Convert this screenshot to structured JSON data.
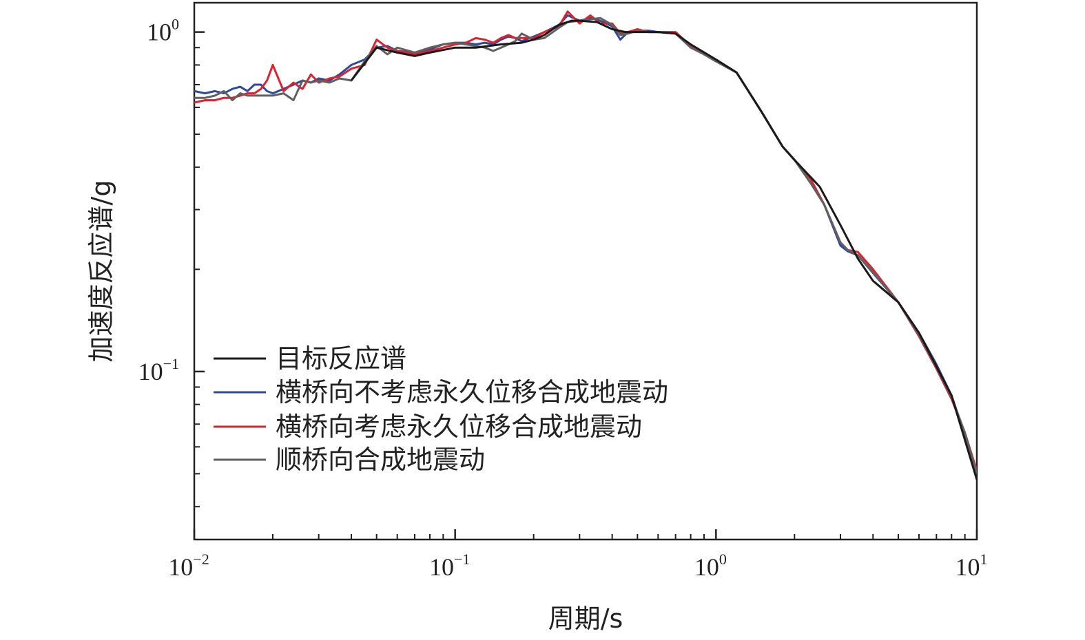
{
  "chart_data": {
    "type": "line",
    "xlabel": "周期/s",
    "ylabel": "加速度反应谱/g",
    "xscale": "log",
    "yscale": "log",
    "xlim": [
      0.01,
      10
    ],
    "ylim": [
      0.032,
      1.22
    ],
    "x_ticks": [
      {
        "value": 0.01,
        "base": "10",
        "exp": "−2"
      },
      {
        "value": 0.1,
        "base": "10",
        "exp": "−1"
      },
      {
        "value": 1,
        "base": "10",
        "exp": "0"
      },
      {
        "value": 10,
        "base": "10",
        "exp": "1"
      }
    ],
    "y_ticks": [
      {
        "value": 0.1,
        "base": "10",
        "exp": "−1"
      },
      {
        "value": 1,
        "base": "10",
        "exp": "0"
      }
    ],
    "grid": false,
    "legend_position": "lower-left",
    "series": [
      {
        "name": "目标反应谱",
        "color": "#1a1a1a",
        "x": [
          0.04,
          0.05,
          0.06,
          0.07,
          0.08,
          0.1,
          0.12,
          0.15,
          0.18,
          0.2,
          0.22,
          0.25,
          0.28,
          0.3,
          0.35,
          0.4,
          0.45,
          0.5,
          0.6,
          0.7,
          0.8,
          1.0,
          1.2,
          1.5,
          1.8,
          2.0,
          2.5,
          3.0,
          3.5,
          4.0,
          5.0,
          6.0,
          8.0,
          10.0
        ],
        "y": [
          0.72,
          0.9,
          0.87,
          0.85,
          0.87,
          0.9,
          0.9,
          0.92,
          0.93,
          0.95,
          0.98,
          1.05,
          1.08,
          1.08,
          1.07,
          1.02,
          1.0,
          1.0,
          1.0,
          0.99,
          0.92,
          0.83,
          0.76,
          0.58,
          0.46,
          0.42,
          0.35,
          0.27,
          0.215,
          0.185,
          0.16,
          0.13,
          0.085,
          0.048
        ]
      },
      {
        "name": "横桥向不考虑永久位移合成地震动",
        "color": "#2e4a9e",
        "x": [
          0.01,
          0.011,
          0.012,
          0.013,
          0.014,
          0.015,
          0.016,
          0.017,
          0.018,
          0.019,
          0.02,
          0.022,
          0.024,
          0.026,
          0.028,
          0.03,
          0.033,
          0.036,
          0.04,
          0.045,
          0.05,
          0.055,
          0.06,
          0.07,
          0.08,
          0.09,
          0.1,
          0.11,
          0.12,
          0.13,
          0.14,
          0.15,
          0.16,
          0.17,
          0.18,
          0.2,
          0.22,
          0.25,
          0.27,
          0.3,
          0.33,
          0.36,
          0.4,
          0.43,
          0.46,
          0.5,
          0.55,
          0.6,
          0.7,
          0.8,
          0.9,
          1.0,
          1.2,
          1.5,
          1.8,
          2.0,
          2.3,
          2.6,
          3.0,
          3.2,
          3.5,
          4.0,
          5.0,
          6.0,
          7.0,
          8.0,
          9.0,
          10.0
        ],
        "y": [
          0.67,
          0.66,
          0.67,
          0.66,
          0.68,
          0.69,
          0.67,
          0.7,
          0.7,
          0.67,
          0.66,
          0.68,
          0.7,
          0.72,
          0.71,
          0.73,
          0.72,
          0.75,
          0.8,
          0.83,
          0.9,
          0.91,
          0.88,
          0.87,
          0.89,
          0.92,
          0.93,
          0.93,
          0.92,
          0.93,
          0.92,
          0.95,
          0.97,
          0.96,
          0.94,
          0.97,
          1.0,
          1.05,
          1.12,
          1.08,
          1.1,
          1.08,
          1.04,
          0.95,
          1.0,
          1.01,
          1.01,
          1.0,
          0.99,
          0.91,
          0.86,
          0.82,
          0.76,
          0.58,
          0.46,
          0.42,
          0.37,
          0.31,
          0.235,
          0.226,
          0.22,
          0.195,
          0.16,
          0.13,
          0.105,
          0.085,
          0.065,
          0.05
        ]
      },
      {
        "name": "横桥向考虑永久位移合成地震动",
        "color": "#e0202c",
        "x": [
          0.01,
          0.011,
          0.012,
          0.013,
          0.014,
          0.015,
          0.016,
          0.017,
          0.018,
          0.019,
          0.02,
          0.022,
          0.024,
          0.026,
          0.028,
          0.03,
          0.033,
          0.036,
          0.04,
          0.045,
          0.05,
          0.055,
          0.06,
          0.07,
          0.08,
          0.09,
          0.1,
          0.11,
          0.12,
          0.13,
          0.14,
          0.15,
          0.16,
          0.17,
          0.18,
          0.2,
          0.22,
          0.25,
          0.27,
          0.3,
          0.33,
          0.36,
          0.4,
          0.43,
          0.46,
          0.5,
          0.55,
          0.6,
          0.7,
          0.8,
          0.9,
          1.0,
          1.2,
          1.5,
          1.8,
          2.0,
          2.3,
          2.6,
          3.0,
          3.2,
          3.5,
          4.0,
          5.0,
          6.0,
          7.0,
          8.0,
          9.0,
          10.0
        ],
        "y": [
          0.62,
          0.63,
          0.63,
          0.64,
          0.64,
          0.65,
          0.66,
          0.66,
          0.68,
          0.72,
          0.8,
          0.67,
          0.71,
          0.68,
          0.75,
          0.71,
          0.73,
          0.74,
          0.78,
          0.8,
          0.95,
          0.9,
          0.88,
          0.86,
          0.88,
          0.9,
          0.92,
          0.93,
          0.96,
          0.95,
          0.93,
          0.96,
          0.98,
          0.96,
          0.96,
          0.96,
          1.0,
          1.04,
          1.15,
          1.06,
          1.12,
          1.06,
          1.06,
          0.99,
          1.0,
          1.02,
          1.0,
          1.0,
          1.0,
          0.91,
          0.86,
          0.83,
          0.76,
          0.58,
          0.46,
          0.42,
          0.37,
          0.31,
          0.24,
          0.228,
          0.225,
          0.2,
          0.16,
          0.127,
          0.102,
          0.083,
          0.066,
          0.051
        ]
      },
      {
        "name": "顺桥向合成地震动",
        "color": "#606060",
        "x": [
          0.01,
          0.011,
          0.012,
          0.013,
          0.014,
          0.015,
          0.016,
          0.017,
          0.018,
          0.019,
          0.02,
          0.022,
          0.024,
          0.026,
          0.028,
          0.03,
          0.033,
          0.036,
          0.04,
          0.045,
          0.05,
          0.055,
          0.06,
          0.07,
          0.08,
          0.09,
          0.1,
          0.11,
          0.12,
          0.13,
          0.14,
          0.15,
          0.16,
          0.17,
          0.18,
          0.2,
          0.22,
          0.25,
          0.27,
          0.3,
          0.33,
          0.36,
          0.4,
          0.43,
          0.46,
          0.5,
          0.55,
          0.6,
          0.7,
          0.8,
          0.9,
          1.0,
          1.2,
          1.5,
          1.8,
          2.0,
          2.3,
          2.6,
          3.0,
          3.2,
          3.5,
          4.0,
          5.0,
          6.0,
          7.0,
          8.0,
          9.0,
          10.0
        ],
        "y": [
          0.64,
          0.64,
          0.65,
          0.67,
          0.63,
          0.66,
          0.65,
          0.65,
          0.65,
          0.65,
          0.65,
          0.66,
          0.63,
          0.72,
          0.71,
          0.72,
          0.71,
          0.73,
          0.72,
          0.82,
          0.91,
          0.86,
          0.9,
          0.87,
          0.9,
          0.92,
          0.93,
          0.92,
          0.91,
          0.9,
          0.88,
          0.9,
          0.92,
          0.94,
          0.99,
          0.95,
          0.96,
          1.03,
          1.07,
          1.08,
          1.09,
          1.1,
          1.05,
          0.98,
          0.99,
          1.01,
          1.0,
          1.0,
          0.99,
          0.9,
          0.86,
          0.82,
          0.76,
          0.58,
          0.46,
          0.42,
          0.36,
          0.31,
          0.24,
          0.228,
          0.22,
          0.196,
          0.16,
          0.128,
          0.103,
          0.084,
          0.066,
          0.05
        ]
      }
    ]
  }
}
